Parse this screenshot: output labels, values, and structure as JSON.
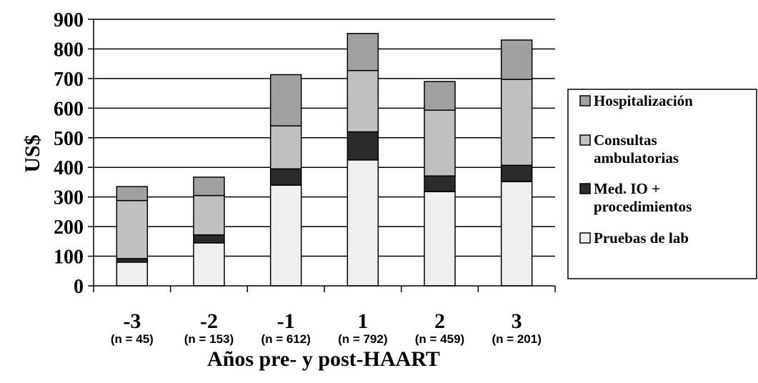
{
  "chart_data": {
    "type": "bar",
    "stacked": true,
    "title": "",
    "xlabel": "Años pre- y post-HAART",
    "ylabel": "US$",
    "ylim": [
      0,
      900
    ],
    "yticks": [
      0,
      100,
      200,
      300,
      400,
      500,
      600,
      700,
      800,
      900
    ],
    "grid": true,
    "legend_position": "right",
    "categories": [
      "-3",
      "-2",
      "-1",
      "1",
      "2",
      "3"
    ],
    "sample_sizes": [
      "(n = 45)",
      "(n = 153)",
      "(n = 612)",
      "(n = 792)",
      "(n = 459)",
      "(n = 201)"
    ],
    "series": [
      {
        "name": "Pruebas de lab",
        "color": "#efefef",
        "values": [
          80,
          145,
          340,
          425,
          318,
          352
        ]
      },
      {
        "name": "Med. IO + procedimientos",
        "color": "#2b2b2b",
        "values": [
          12,
          27,
          55,
          95,
          53,
          55
        ]
      },
      {
        "name": "Consultas ambulatorias",
        "color": "#c0c0c0",
        "values": [
          196,
          133,
          145,
          207,
          222,
          290
        ]
      },
      {
        "name": "Hospitalización",
        "color": "#a0a0a0",
        "values": [
          47,
          62,
          173,
          125,
          97,
          133
        ]
      }
    ],
    "legend_entries": [
      {
        "series": 3,
        "lines": [
          "Hospitalización"
        ]
      },
      {
        "series": 2,
        "lines": [
          "Consultas",
          "ambulatorias"
        ]
      },
      {
        "series": 1,
        "lines": [
          "Med. IO +",
          "procedimientos"
        ]
      },
      {
        "series": 0,
        "lines": [
          "Pruebas de lab"
        ]
      }
    ]
  }
}
